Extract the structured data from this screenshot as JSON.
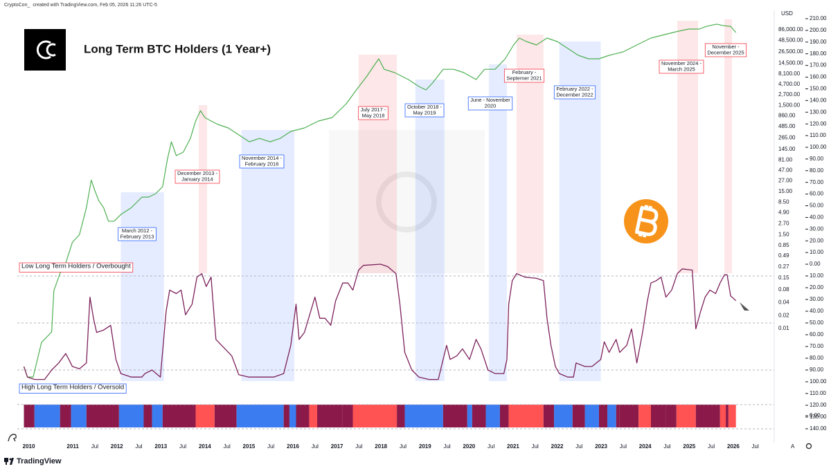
{
  "header": {
    "author": "CryptoCon_",
    "text": "created with TradingView.com, Feb 05, 2026 11:26 UTC-5"
  },
  "footer": {
    "brand": "TradingView",
    "auto_scale": "A"
  },
  "chart_data": [
    {
      "type": "line",
      "title": "Long Term BTC Holders (1 Year+)",
      "currency": "USD",
      "log": true,
      "color": "#4caf50",
      "x": [
        2009.89,
        2009.97,
        2010.1,
        2010.29,
        2010.52,
        2010.57,
        2010.71,
        2010.84,
        2010.99,
        2011.15,
        2011.31,
        2011.42,
        2011.5,
        2011.59,
        2011.7,
        2011.81,
        2011.94,
        2012.09,
        2012.33,
        2012.57,
        2012.72,
        2012.88,
        2013.04,
        2013.15,
        2013.24,
        2013.35,
        2013.51,
        2013.67,
        2013.79,
        2013.9,
        2014.0,
        2014.14,
        2014.3,
        2014.53,
        2014.77,
        2015.01,
        2015.24,
        2015.48,
        2015.71,
        2015.95,
        2016.26,
        2016.58,
        2016.89,
        2017.21,
        2017.44,
        2017.68,
        2017.84,
        2017.95,
        2018.07,
        2018.31,
        2018.62,
        2018.86,
        2019.02,
        2019.17,
        2019.41,
        2019.65,
        2019.88,
        2020.16,
        2020.35,
        2020.59,
        2020.82,
        2021.01,
        2021.14,
        2021.3,
        2021.53,
        2021.77,
        2022.0,
        2022.24,
        2022.48,
        2022.71,
        2022.95,
        2023.18,
        2023.5,
        2023.81,
        2024.13,
        2024.44,
        2024.76,
        2024.99,
        2025.23,
        2025.39,
        2025.62,
        2025.78,
        2025.94,
        2026.06
      ],
      "values": [
        0.0013,
        0.00075,
        0.00075,
        0.0048,
        0.0083,
        0.076,
        0.19,
        0.33,
        1.0,
        1.5,
        6.4,
        28,
        16,
        9.3,
        6.4,
        3.1,
        3.1,
        4.4,
        6.4,
        11.2,
        11.2,
        13.5,
        19.5,
        86,
        216,
        103,
        124,
        259,
        653,
        1140,
        787,
        653,
        543,
        452,
        312,
        216,
        259,
        216,
        259,
        376,
        452,
        653,
        787,
        1650,
        3450,
        7230,
        12600,
        18200,
        10400,
        8690,
        6000,
        4150,
        3450,
        4990,
        10400,
        10400,
        8690,
        6000,
        10400,
        10400,
        18200,
        38100,
        55200,
        45800,
        38100,
        55200,
        45800,
        31700,
        21900,
        18200,
        18200,
        21900,
        26400,
        38100,
        55200,
        66400,
        79800,
        89100,
        89100,
        103000,
        116000,
        107000,
        103000,
        74100
      ],
      "xlim": [
        2009.74,
        2026.93
      ],
      "xticks": [
        2010,
        2011,
        {
          "value": 2011.5,
          "label": "Jul"
        },
        2012,
        {
          "value": 2012.5,
          "label": "Jul"
        },
        2013,
        {
          "value": 2013.5,
          "label": "Jul"
        },
        2014,
        {
          "value": 2014.5,
          "label": "Jul"
        },
        2015,
        {
          "value": 2015.5,
          "label": "Jul"
        },
        2016,
        {
          "value": 2016.5,
          "label": "Jul"
        },
        2017,
        {
          "value": 2017.5,
          "label": "Jul"
        },
        2018,
        {
          "value": 2018.5,
          "label": "Jul"
        },
        2019,
        {
          "value": 2019.5,
          "label": "Jul"
        },
        2020,
        {
          "value": 2020.5,
          "label": "Jul"
        },
        2021,
        {
          "value": 2021.5,
          "label": "Jul"
        },
        2022,
        {
          "value": 2022.5,
          "label": "Jul"
        },
        2023,
        {
          "value": 2023.5,
          "label": "Jul"
        },
        2024,
        {
          "value": 2024.5,
          "label": "Jul"
        },
        2025,
        {
          "value": 2025.5,
          "label": "Jul"
        },
        2026,
        {
          "value": 2026.5,
          "label": "Jul"
        }
      ],
      "ylim": [
        2.246e-05,
        242100
      ],
      "yticks": [
        {
          "value": 86000,
          "label": "86,000.00"
        },
        {
          "value": 48500,
          "label": "48,500.00"
        },
        {
          "value": 26500,
          "label": "26,500.00"
        },
        {
          "value": 14500,
          "label": "14,500.00"
        },
        {
          "value": 8100,
          "label": "8,100.00"
        },
        {
          "value": 4700,
          "label": "4,700.00"
        },
        {
          "value": 2700,
          "label": "2,700.00"
        },
        {
          "value": 1500,
          "label": "1,500.00"
        },
        {
          "value": 860,
          "label": "860.00"
        },
        {
          "value": 485,
          "label": "485.00"
        },
        {
          "value": 265,
          "label": "265.00"
        },
        {
          "value": 145,
          "label": "145.00"
        },
        {
          "value": 81,
          "label": "81.00"
        },
        {
          "value": 47,
          "label": "47.00"
        },
        {
          "value": 27,
          "label": "27.00"
        },
        {
          "value": 15,
          "label": "15.00"
        },
        {
          "value": 8.5,
          "label": "8.50"
        },
        {
          "value": 4.9,
          "label": "4.90"
        },
        {
          "value": 2.7,
          "label": "2.70"
        },
        {
          "value": 1.5,
          "label": "1.50"
        },
        {
          "value": 0.85,
          "label": "0.85"
        },
        {
          "value": 0.49,
          "label": "0.49"
        },
        {
          "value": 0.27,
          "label": "0.27"
        },
        {
          "value": 0.15,
          "label": "0.15"
        },
        {
          "value": 0.08,
          "label": "0.08"
        },
        {
          "value": 0.04,
          "label": "0.04"
        },
        {
          "value": 0.02,
          "label": "0.02"
        },
        {
          "value": 0.01,
          "label": "0.01"
        }
      ],
      "y2lim": [
        -152.6,
        217.1
      ],
      "y2ticks": [
        {
          "value": 210,
          "label": "210.00"
        },
        {
          "value": 200,
          "label": "200.00"
        },
        {
          "value": 190,
          "label": "190.00"
        },
        {
          "value": 180,
          "label": "180.00"
        },
        {
          "value": 170,
          "label": "170.00"
        },
        {
          "value": 160,
          "label": "160.00"
        },
        {
          "value": 150,
          "label": "150.00"
        },
        {
          "value": 140,
          "label": "140.00"
        },
        {
          "value": 130,
          "label": "130.00"
        },
        {
          "value": 120,
          "label": "120.00"
        },
        {
          "value": 110,
          "label": "110.00"
        },
        {
          "value": 100,
          "label": "100.00"
        },
        {
          "value": 90,
          "label": "90.00"
        },
        {
          "value": 80,
          "label": "80.00"
        },
        {
          "value": 70,
          "label": "70.00"
        },
        {
          "value": 60,
          "label": "60.00"
        },
        {
          "value": 50,
          "label": "50.00"
        },
        {
          "value": 40,
          "label": "40.00"
        },
        {
          "value": 30,
          "label": "30.00"
        },
        {
          "value": 20,
          "label": "20.00"
        },
        {
          "value": 10,
          "label": "10.00"
        },
        {
          "value": 0,
          "label": "0.00"
        }
      ],
      "annotations": [
        {
          "text": [
            "March 2012 -",
            "February 2013"
          ],
          "start": 2012.09,
          "end": 2013.07,
          "color": "#2962ff"
        },
        {
          "text": [
            "December 2013 -",
            "January 2014"
          ],
          "start": 2013.86,
          "end": 2014.05,
          "color": "#f23645"
        },
        {
          "text": [
            "November 2014 -",
            "February 2016"
          ],
          "start": 2014.83,
          "end": 2016.03,
          "color": "#2962ff"
        },
        {
          "text": [
            "July 2017 -",
            "May 2018"
          ],
          "start": 2017.49,
          "end": 2018.36,
          "color": "#f23645"
        },
        {
          "text": [
            "October 2018 -",
            "May 2019"
          ],
          "start": 2018.78,
          "end": 2019.44,
          "color": "#2962ff"
        },
        {
          "text": [
            "June - November",
            "2020"
          ],
          "start": 2020.45,
          "end": 2020.86,
          "color": "#2962ff"
        },
        {
          "text": [
            "February -",
            "Septemer 2021"
          ],
          "start": 2021.08,
          "end": 2021.69,
          "color": "#f23645"
        },
        {
          "text": [
            "February 2022 -",
            "December 2022"
          ],
          "start": 2022.05,
          "end": 2022.99,
          "color": "#2962ff"
        },
        {
          "text": [
            "November 2024 -",
            "March 2025"
          ],
          "start": 2024.73,
          "end": 2025.2,
          "color": "#f23645"
        },
        {
          "text": [
            "November -",
            "December 2025"
          ],
          "start": 2025.8,
          "end": 2025.97,
          "color": "#f23645"
        }
      ]
    },
    {
      "type": "line",
      "color": "#7b1f5a",
      "x": [
        2009.89,
        2009.97,
        2010.13,
        2010.36,
        2010.52,
        2010.68,
        2010.84,
        2010.91,
        2010.99,
        2011.15,
        2011.31,
        2011.39,
        2011.47,
        2011.54,
        2011.7,
        2011.86,
        2011.98,
        2012.09,
        2012.33,
        2012.57,
        2012.64,
        2012.8,
        2012.99,
        2013.12,
        2013.2,
        2013.35,
        2013.46,
        2013.56,
        2013.71,
        2013.82,
        2013.93,
        2014.03,
        2014.14,
        2014.25,
        2014.38,
        2014.61,
        2014.77,
        2015.0,
        2015.24,
        2015.56,
        2015.79,
        2015.87,
        2015.95,
        2016.07,
        2016.14,
        2016.26,
        2016.5,
        2016.61,
        2016.73,
        2016.86,
        2016.97,
        2017.13,
        2017.25,
        2017.36,
        2017.49,
        2017.6,
        2017.99,
        2018.15,
        2018.34,
        2018.43,
        2018.54,
        2018.7,
        2018.86,
        2019.09,
        2019.3,
        2019.41,
        2019.49,
        2019.57,
        2019.72,
        2019.85,
        2020.01,
        2020.16,
        2020.27,
        2020.43,
        2020.59,
        2020.79,
        2020.86,
        2020.9,
        2020.98,
        2021.08,
        2021.27,
        2021.53,
        2021.69,
        2021.77,
        2021.86,
        2021.96,
        2022.05,
        2022.24,
        2022.37,
        2022.43,
        2022.63,
        2022.79,
        2022.99,
        2023.07,
        2023.18,
        2023.34,
        2023.42,
        2023.58,
        2023.69,
        2023.81,
        2023.94,
        2024.05,
        2024.13,
        2024.25,
        2024.36,
        2024.47,
        2024.6,
        2024.73,
        2024.84,
        2025.07,
        2025.15,
        2025.26,
        2025.36,
        2025.47,
        2025.6,
        2025.7,
        2025.8,
        2025.86,
        2025.94,
        2026.06
      ],
      "values": [
        87,
        96,
        98,
        98,
        90,
        84,
        76,
        81,
        87,
        89,
        84,
        28,
        46,
        58,
        56,
        52,
        81,
        93,
        96,
        96,
        93,
        90,
        96,
        40,
        22,
        25,
        22,
        43,
        34,
        11,
        8,
        19,
        11,
        64,
        69,
        78,
        94,
        96,
        96,
        96,
        93,
        81,
        69,
        34,
        64,
        58,
        28,
        46,
        46,
        52,
        31,
        16,
        16,
        22,
        5,
        1,
        0,
        2,
        8,
        34,
        75,
        90,
        96,
        98,
        98,
        81,
        69,
        81,
        78,
        72,
        81,
        64,
        72,
        90,
        93,
        93,
        81,
        34,
        14,
        8,
        11,
        12,
        14,
        46,
        69,
        87,
        93,
        96,
        96,
        84,
        87,
        87,
        81,
        66,
        75,
        64,
        75,
        69,
        55,
        84,
        58,
        31,
        16,
        14,
        11,
        28,
        22,
        8,
        4,
        5,
        55,
        40,
        28,
        22,
        25,
        16,
        9,
        9,
        27,
        31
      ],
      "ylim": [
        151.8,
        -215.9
      ],
      "yticks": [
        {
          "value": 10,
          "label": "10.00"
        },
        {
          "value": 20,
          "label": "20.00"
        },
        {
          "value": 30,
          "label": "30.00"
        },
        {
          "value": 40,
          "label": "40.00"
        },
        {
          "value": 50,
          "label": "50.00"
        },
        {
          "value": 60,
          "label": "60.00"
        },
        {
          "value": 70,
          "label": "70.00"
        },
        {
          "value": 80,
          "label": "80.00"
        },
        {
          "value": 90,
          "label": "90.00"
        },
        {
          "value": 100,
          "label": "100.00"
        },
        {
          "value": 110,
          "label": "110.00"
        },
        {
          "value": 120,
          "label": "120.00"
        },
        {
          "value": 130,
          "label": "130.00"
        },
        {
          "value": 140,
          "label": "140.00"
        }
      ],
      "hlines": [
        10,
        50,
        90
      ],
      "annotations": [
        {
          "text": "Low Long Term Holders / Overbought",
          "color": "#f23645"
        },
        {
          "text": "High Long Term Holders / Oversold",
          "color": "#2962ff"
        }
      ]
    },
    {
      "type": "band",
      "bins": [
        2009.89,
        2010.13,
        2010.71,
        2010.96,
        2011.31,
        2012.05,
        2012.61,
        2012.8,
        2013.04,
        2013.79,
        2014.22,
        2014.72,
        2015.79,
        2015.92,
        2016.07,
        2016.37,
        2016.55,
        2017.13,
        2017.36,
        2018.36,
        2018.54,
        2019.41,
        2019.96,
        2020.07,
        2020.38,
        2020.7,
        2020.9,
        2021.69,
        2021.93,
        2022.35,
        2022.63,
        2022.95,
        2023.14,
        2023.34,
        2023.42,
        2023.85,
        2024.13,
        2024.47,
        2024.71,
        2025.15,
        2025.7,
        2025.83,
        2025.89,
        2026.06
      ],
      "colors": [
        "#8b1a4a",
        "#3b7cf0",
        "#8b1a4a",
        "#3b7cf0",
        "#8b1a4a",
        "#3b7cf0",
        "#8b1a4a",
        "#3b7cf0",
        "#8b1a4a",
        "#ff5252",
        "#8b1a4a",
        "#3b7cf0",
        "#8b1a4a",
        "#3b7cf0",
        "#8b1a4a",
        "#ff5252",
        "#8b1a4a",
        "#8b1a4a",
        "#ff5252",
        "#8b1a4a",
        "#3b7cf0",
        "#8b1a4a",
        "#3b7cf0",
        "#8b1a4a",
        "#3b7cf0",
        "#8b1a4a",
        "#ff5252",
        "#8b1a4a",
        "#3b7cf0",
        "#8b1a4a",
        "#3b7cf0",
        "#8b1a4a",
        "#3b7cf0",
        "#8b1a4a",
        "#8b1a4a",
        "#ff5252",
        "#8b1a4a",
        "#8b1a4a",
        "#ff5252",
        "#8b1a4a",
        "#ff5252",
        "#8b1a4a",
        "#ff5252"
      ],
      "yticks": [
        {
          "value": 0,
          "label": "0.00"
        }
      ]
    }
  ]
}
